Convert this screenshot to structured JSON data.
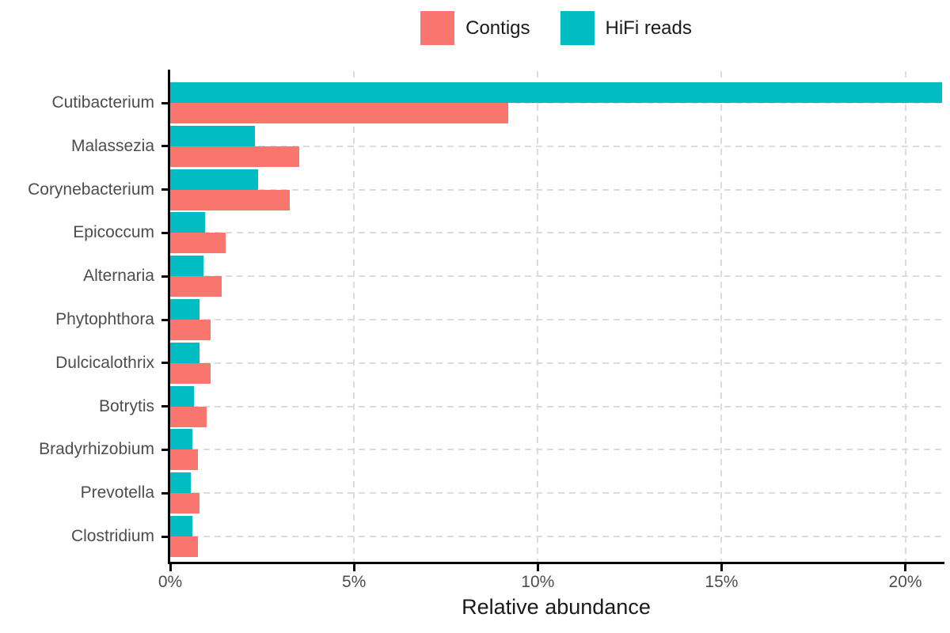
{
  "legend": {
    "items": [
      {
        "label": "Contigs",
        "color": "#F8766D"
      },
      {
        "label": "HiFi reads",
        "color": "#00BDC3"
      }
    ]
  },
  "chart_data": {
    "type": "bar",
    "orientation": "horizontal",
    "title": "",
    "xlabel": "Relative abundance",
    "ylabel": "",
    "xlim": [
      0,
      21
    ],
    "grid": "dashed",
    "legend_position": "top-center",
    "x_ticks": [
      {
        "value": 0,
        "label": "0%"
      },
      {
        "value": 5,
        "label": "5%"
      },
      {
        "value": 10,
        "label": "10%"
      },
      {
        "value": 15,
        "label": "15%"
      },
      {
        "value": 20,
        "label": "20%"
      }
    ],
    "categories": [
      "Cutibacterium",
      "Malassezia",
      "Corynebacterium",
      "Epicoccum",
      "Alternaria",
      "Phytophthora",
      "Dulcicalothrix",
      "Botrytis",
      "Bradyrhizobium",
      "Prevotella",
      "Clostridium"
    ],
    "series": [
      {
        "name": "HiFi reads",
        "color": "#00BDC3",
        "values": [
          21.0,
          2.3,
          2.4,
          0.95,
          0.9,
          0.8,
          0.8,
          0.65,
          0.6,
          0.55,
          0.6
        ]
      },
      {
        "name": "Contigs",
        "color": "#F8766D",
        "values": [
          9.2,
          3.5,
          3.25,
          1.5,
          1.4,
          1.1,
          1.1,
          1.0,
          0.75,
          0.8,
          0.75
        ]
      }
    ]
  },
  "colors": {
    "axis": "#000000",
    "gridline": "#dcdcdc",
    "axis_text": "#4d4d4d",
    "title_text": "#1a1a1a"
  }
}
